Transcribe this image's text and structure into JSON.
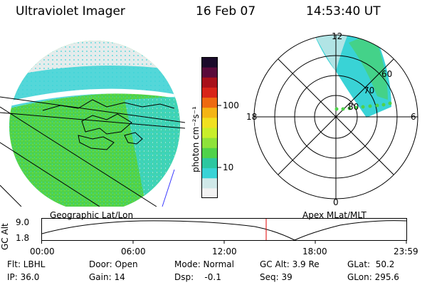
{
  "header": {
    "instrument": "Ultraviolet Imager",
    "date": "16 Feb 07",
    "time": "14:53:40 UT"
  },
  "colorbar": {
    "unit_label": "photon cm⁻²s⁻¹",
    "tick_100": "100",
    "tick_10": "10",
    "colors": [
      "#f2f2f2",
      "#cfe8e8",
      "#39d3d6",
      "#2cc7a0",
      "#4fd24a",
      "#8ee23a",
      "#c8ee2a",
      "#f0e020",
      "#f4b414",
      "#ee6a10",
      "#d82418",
      "#a8101a",
      "#5a0a3a",
      "#1a0a2a"
    ]
  },
  "left_panel": {
    "title": "Geographic Lat/Lon"
  },
  "polar_panel": {
    "title": "Apex  MLat/MLT",
    "mlt_top": "12",
    "mlt_bottom": "0",
    "mlt_left": "18",
    "mlt_right": "6",
    "lat_60": "60",
    "lat_70": "70",
    "lat_80": "80"
  },
  "altitude_plot": {
    "ylabel": "GC Alt",
    "y_high": "9.0",
    "y_low": "1.8",
    "x_ticks": [
      "00:00",
      "06:00",
      "12:00",
      "18:00",
      "23:59"
    ]
  },
  "info": {
    "filter": "Flt: LBHL",
    "ip": "IP: 36.0",
    "door": "Door: Open",
    "gain": "Gain: 14",
    "mode": "Mode: Normal",
    "dsp": "Dsp:    -0.1",
    "gc_alt": "GC Alt: 3.9 Re",
    "seq": "Seq: 39",
    "glat": "GLat:  50.2",
    "glon": "GLon: 295.6"
  }
}
